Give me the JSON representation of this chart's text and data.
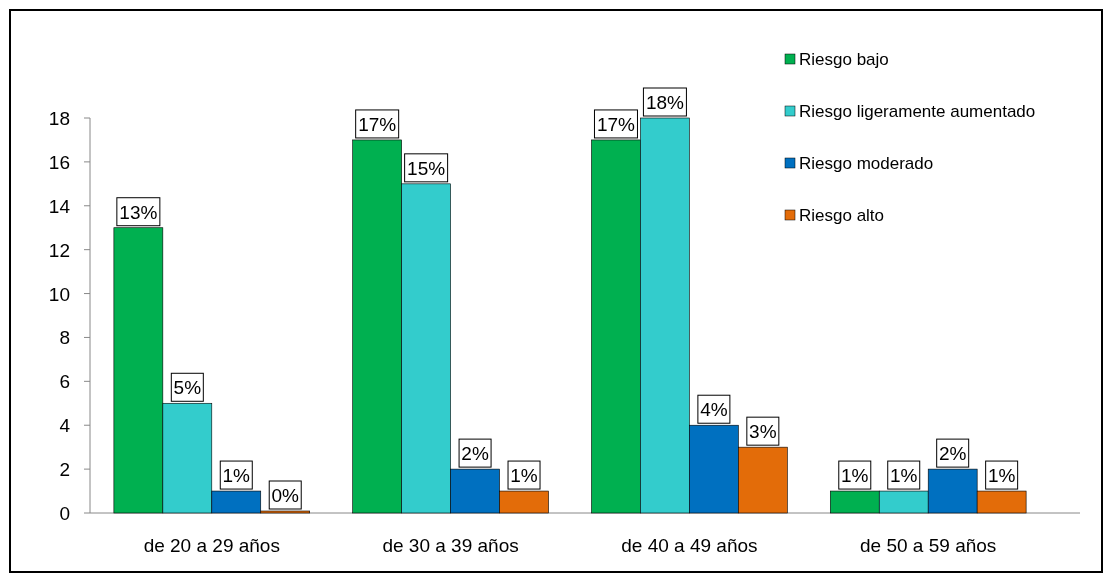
{
  "chart_data": {
    "type": "bar",
    "categories": [
      "de 20 a 29 años",
      "de 30 a 39 años",
      "de 40 a 49 años",
      "de 50 a 59 años"
    ],
    "series": [
      {
        "name": "Riesgo bajo",
        "color": "#00b050",
        "values": [
          13,
          17,
          17,
          1
        ],
        "value_labels": [
          "13%",
          "17%",
          "17%",
          "1%"
        ]
      },
      {
        "name": "Riesgo ligeramente aumentado",
        "color": "#33cccc",
        "values": [
          5,
          15,
          18,
          1
        ],
        "value_labels": [
          "5%",
          "15%",
          "18%",
          "1%"
        ]
      },
      {
        "name": "Riesgo moderado",
        "color": "#0070c0",
        "values": [
          1,
          2,
          4,
          2
        ],
        "value_labels": [
          "1%",
          "2%",
          "4%",
          "2%"
        ]
      },
      {
        "name": "Riesgo alto",
        "color": "#e36c09",
        "values": [
          0,
          1,
          3,
          1
        ],
        "value_labels": [
          "0%",
          "1%",
          "3%",
          "1%"
        ]
      }
    ],
    "ylim": [
      0,
      18
    ],
    "yticks": [
      0,
      2,
      4,
      6,
      8,
      10,
      12,
      14,
      16,
      18
    ],
    "grid": false,
    "legend": "top right"
  }
}
